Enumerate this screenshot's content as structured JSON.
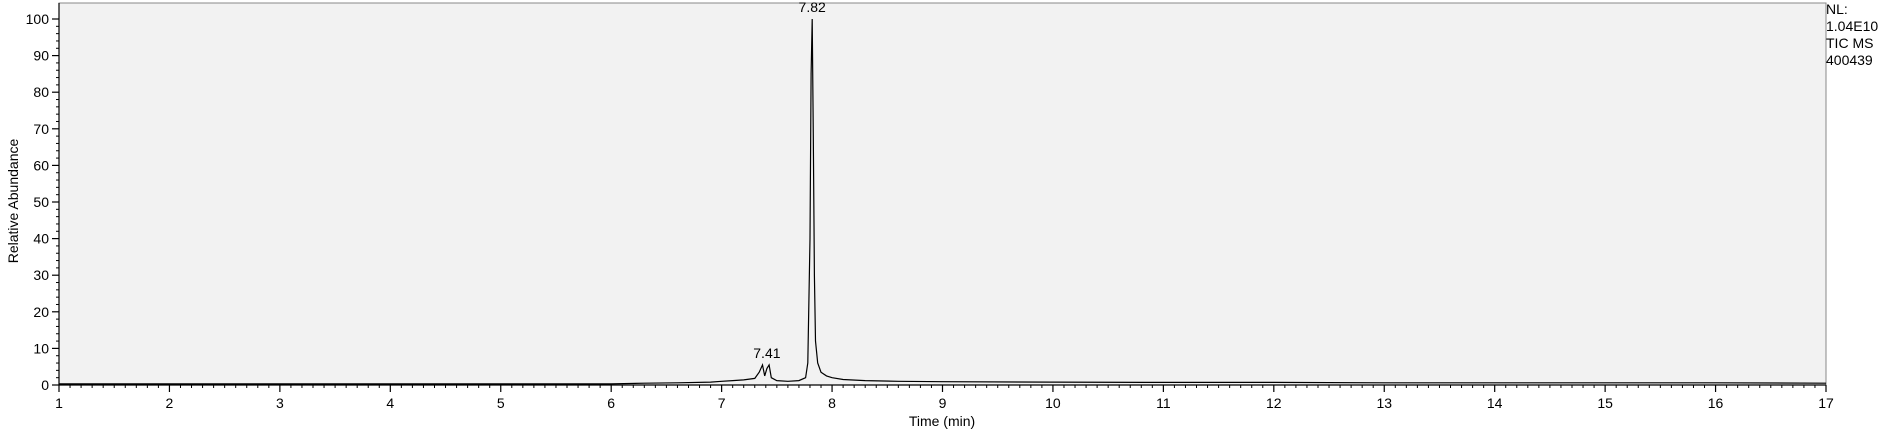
{
  "chart_data": {
    "type": "line",
    "title": "",
    "xlabel": "Time (min)",
    "ylabel": "Relative Abundance",
    "xlim": [
      1,
      17
    ],
    "ylim": [
      0,
      100
    ],
    "xticks": [
      1,
      2,
      3,
      4,
      5,
      6,
      7,
      8,
      9,
      10,
      11,
      12,
      13,
      14,
      15,
      16,
      17
    ],
    "yticks": [
      0,
      10,
      20,
      30,
      40,
      50,
      60,
      70,
      80,
      90,
      100
    ],
    "grid": false,
    "background": "#f2f2f2",
    "line_color": "#000000",
    "series": [
      {
        "x": [
          1.0,
          2.0,
          3.0,
          4.0,
          5.0,
          6.0,
          6.3,
          6.6,
          6.9,
          7.0,
          7.1,
          7.2,
          7.3,
          7.34,
          7.37,
          7.39,
          7.41,
          7.43,
          7.45,
          7.5,
          7.6,
          7.7,
          7.76,
          7.78,
          7.8,
          7.81,
          7.82,
          7.83,
          7.84,
          7.85,
          7.87,
          7.9,
          7.95,
          8.0,
          8.1,
          8.3,
          8.6,
          9.0,
          10.0,
          11.0,
          12.0,
          13.0,
          14.0,
          15.0,
          16.0,
          17.0
        ],
        "y": [
          0.3,
          0.3,
          0.3,
          0.3,
          0.3,
          0.3,
          0.5,
          0.6,
          0.8,
          1.0,
          1.2,
          1.4,
          1.8,
          3.5,
          5.5,
          2.5,
          4.5,
          5.5,
          2.0,
          1.2,
          1.0,
          1.2,
          2.0,
          6.0,
          40.0,
          85.0,
          100.0,
          68.0,
          30.0,
          12.0,
          6.0,
          3.5,
          2.5,
          2.0,
          1.5,
          1.2,
          1.0,
          0.9,
          0.8,
          0.7,
          0.7,
          0.6,
          0.6,
          0.6,
          0.6,
          0.5
        ]
      }
    ],
    "annotations": [
      {
        "x": 7.41,
        "y": 5.5,
        "text": "7.41"
      },
      {
        "x": 7.82,
        "y": 100,
        "text": "7.82"
      }
    ]
  },
  "side_info": {
    "nl_label": "NL:",
    "nl_value": "1.04E10",
    "scan_type": "TIC  MS",
    "sample": "400439"
  }
}
